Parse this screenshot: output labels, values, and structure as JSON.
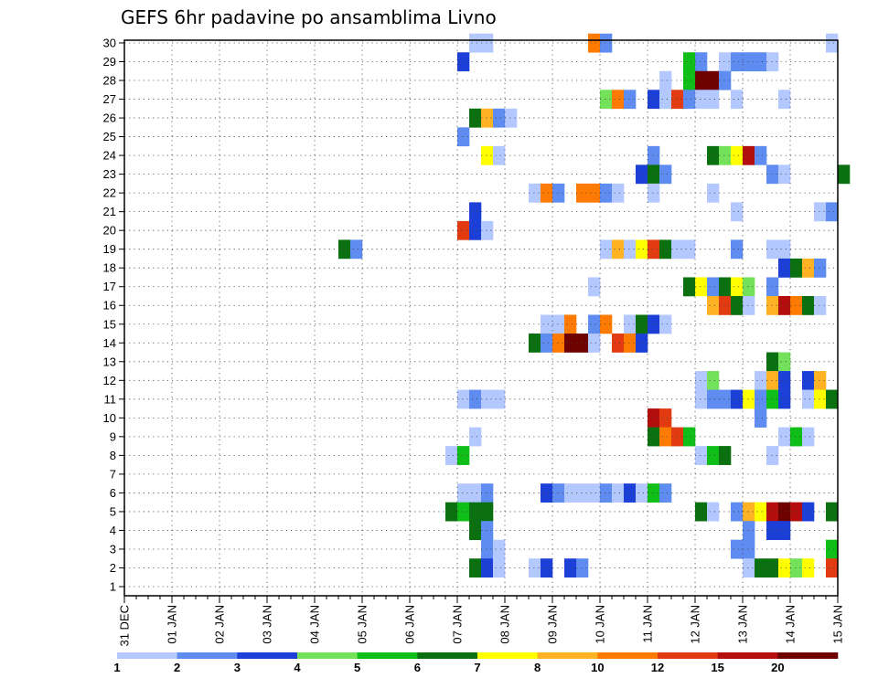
{
  "chart_data": {
    "type": "heatmap",
    "title": "GEFS 6hr padavine po ansamblima Livno",
    "xlabel": "",
    "ylabel": "",
    "ylim": [
      1,
      30
    ],
    "grid": true,
    "x_tick_labels": [
      "31 DEC",
      "01 JAN",
      "02 JAN",
      "03 JAN",
      "04 JAN",
      "05 JAN",
      "06 JAN",
      "07 JAN",
      "08 JAN",
      "09 JAN",
      "10 JAN",
      "11 JAN",
      "12 JAN",
      "13 JAN",
      "14 JAN",
      "15 JAN"
    ],
    "y_tick_labels": [
      "1",
      "2",
      "3",
      "4",
      "5",
      "6",
      "7",
      "8",
      "9",
      "10",
      "11",
      "12",
      "13",
      "14",
      "15",
      "16",
      "17",
      "18",
      "19",
      "20",
      "21",
      "22",
      "23",
      "24",
      "25",
      "26",
      "27",
      "28",
      "29",
      "30"
    ],
    "colorbar": {
      "labels": [
        "1",
        "2",
        "3",
        "4",
        "5",
        "6",
        "7",
        "8",
        "10",
        "12",
        "15",
        "20"
      ],
      "colors": [
        "#b3c8ff",
        "#5f8cf0",
        "#1c3fd8",
        "#73e25a",
        "#0fbf17",
        "#0b700f",
        "#ffff00",
        "#ffb224",
        "#ff7a00",
        "#e23b12",
        "#b30d0d",
        "#6f0000"
      ]
    },
    "cells_note": "each cell: [x in days after 31 DEC 00z, member 1-30, precipitation colour class index 0-11]",
    "cells": [
      [
        7.25,
        30,
        0
      ],
      [
        7.5,
        30,
        0
      ],
      [
        9.75,
        30,
        8
      ],
      [
        10.0,
        30,
        1
      ],
      [
        14.75,
        30,
        0
      ],
      [
        7.0,
        29,
        2
      ],
      [
        11.75,
        29,
        4
      ],
      [
        12.0,
        29,
        1
      ],
      [
        12.5,
        29,
        0
      ],
      [
        12.75,
        29,
        1
      ],
      [
        13.0,
        29,
        1
      ],
      [
        13.25,
        29,
        1
      ],
      [
        13.5,
        29,
        0
      ],
      [
        11.25,
        28,
        0
      ],
      [
        11.75,
        28,
        4
      ],
      [
        12.0,
        28,
        11
      ],
      [
        12.25,
        28,
        11
      ],
      [
        12.5,
        28,
        1
      ],
      [
        10.0,
        27,
        3
      ],
      [
        10.25,
        27,
        8
      ],
      [
        10.5,
        27,
        1
      ],
      [
        11.0,
        27,
        2
      ],
      [
        11.25,
        27,
        0
      ],
      [
        11.5,
        27,
        9
      ],
      [
        11.75,
        27,
        1
      ],
      [
        12.0,
        27,
        0
      ],
      [
        12.25,
        27,
        0
      ],
      [
        12.75,
        27,
        0
      ],
      [
        13.75,
        27,
        0
      ],
      [
        7.25,
        26,
        5
      ],
      [
        7.5,
        26,
        7
      ],
      [
        7.75,
        26,
        1
      ],
      [
        8.0,
        26,
        0
      ],
      [
        7.0,
        25,
        1
      ],
      [
        7.5,
        24,
        6
      ],
      [
        7.75,
        24,
        0
      ],
      [
        11.0,
        24,
        1
      ],
      [
        12.25,
        24,
        5
      ],
      [
        12.5,
        24,
        3
      ],
      [
        12.75,
        24,
        6
      ],
      [
        13.0,
        24,
        10
      ],
      [
        13.25,
        24,
        1
      ],
      [
        10.75,
        23,
        2
      ],
      [
        11.0,
        23,
        5
      ],
      [
        11.25,
        23,
        1
      ],
      [
        13.5,
        23,
        1
      ],
      [
        13.75,
        23,
        0
      ],
      [
        15.0,
        23,
        5
      ],
      [
        8.5,
        22,
        0
      ],
      [
        8.75,
        22,
        8
      ],
      [
        9.0,
        22,
        1
      ],
      [
        9.5,
        22,
        8
      ],
      [
        9.75,
        22,
        8
      ],
      [
        10.0,
        22,
        1
      ],
      [
        10.25,
        22,
        0
      ],
      [
        11.0,
        22,
        0
      ],
      [
        12.25,
        22,
        0
      ],
      [
        7.25,
        21,
        2
      ],
      [
        12.75,
        21,
        0
      ],
      [
        14.5,
        21,
        0
      ],
      [
        14.75,
        21,
        1
      ],
      [
        7.0,
        20,
        9
      ],
      [
        7.25,
        20,
        2
      ],
      [
        7.5,
        20,
        0
      ],
      [
        4.5,
        19,
        5
      ],
      [
        4.75,
        19,
        1
      ],
      [
        10.0,
        19,
        0
      ],
      [
        10.25,
        19,
        7
      ],
      [
        10.5,
        19,
        0
      ],
      [
        10.75,
        19,
        6
      ],
      [
        11.0,
        19,
        9
      ],
      [
        11.25,
        19,
        5
      ],
      [
        11.5,
        19,
        0
      ],
      [
        11.75,
        19,
        0
      ],
      [
        12.75,
        19,
        1
      ],
      [
        13.5,
        19,
        0
      ],
      [
        13.75,
        19,
        0
      ],
      [
        13.75,
        18,
        2
      ],
      [
        14.0,
        18,
        5
      ],
      [
        14.25,
        18,
        7
      ],
      [
        14.5,
        18,
        1
      ],
      [
        9.75,
        17,
        0
      ],
      [
        11.75,
        17,
        5
      ],
      [
        12.0,
        17,
        6
      ],
      [
        12.25,
        17,
        1
      ],
      [
        12.5,
        17,
        5
      ],
      [
        12.75,
        17,
        6
      ],
      [
        13.0,
        17,
        3
      ],
      [
        13.5,
        17,
        1
      ],
      [
        12.25,
        16,
        7
      ],
      [
        12.5,
        16,
        9
      ],
      [
        12.75,
        16,
        5
      ],
      [
        13.0,
        16,
        0
      ],
      [
        13.5,
        16,
        7
      ],
      [
        13.75,
        16,
        10
      ],
      [
        14.0,
        16,
        8
      ],
      [
        14.25,
        16,
        5
      ],
      [
        14.5,
        16,
        0
      ],
      [
        8.75,
        15,
        0
      ],
      [
        9.0,
        15,
        0
      ],
      [
        9.25,
        15,
        8
      ],
      [
        9.75,
        15,
        1
      ],
      [
        10.0,
        15,
        8
      ],
      [
        10.5,
        15,
        0
      ],
      [
        10.75,
        15,
        5
      ],
      [
        11.0,
        15,
        2
      ],
      [
        11.25,
        15,
        0
      ],
      [
        8.5,
        14,
        5
      ],
      [
        8.75,
        14,
        1
      ],
      [
        9.0,
        14,
        8
      ],
      [
        9.25,
        14,
        11
      ],
      [
        9.5,
        14,
        11
      ],
      [
        9.75,
        14,
        0
      ],
      [
        10.25,
        14,
        9
      ],
      [
        10.5,
        14,
        8
      ],
      [
        10.75,
        14,
        2
      ],
      [
        13.5,
        13,
        5
      ],
      [
        13.75,
        13,
        3
      ],
      [
        12.0,
        12,
        0
      ],
      [
        12.25,
        12,
        3
      ],
      [
        13.25,
        12,
        0
      ],
      [
        13.5,
        12,
        7
      ],
      [
        13.75,
        12,
        2
      ],
      [
        14.25,
        12,
        2
      ],
      [
        14.5,
        12,
        7
      ],
      [
        7.0,
        11,
        0
      ],
      [
        7.25,
        11,
        1
      ],
      [
        7.5,
        11,
        0
      ],
      [
        7.75,
        11,
        0
      ],
      [
        12.0,
        11,
        0
      ],
      [
        12.25,
        11,
        1
      ],
      [
        12.5,
        11,
        1
      ],
      [
        12.75,
        11,
        2
      ],
      [
        13.0,
        11,
        6
      ],
      [
        13.25,
        11,
        1
      ],
      [
        13.5,
        11,
        4
      ],
      [
        13.75,
        11,
        2
      ],
      [
        14.25,
        11,
        0
      ],
      [
        14.5,
        11,
        6
      ],
      [
        14.75,
        11,
        5
      ],
      [
        11.0,
        10,
        10
      ],
      [
        11.25,
        10,
        9
      ],
      [
        13.25,
        10,
        1
      ],
      [
        11.0,
        9,
        5
      ],
      [
        11.25,
        9,
        8
      ],
      [
        11.5,
        9,
        9
      ],
      [
        11.75,
        9,
        4
      ],
      [
        7.25,
        9,
        0
      ],
      [
        13.75,
        9,
        0
      ],
      [
        14.0,
        9,
        4
      ],
      [
        14.25,
        9,
        0
      ],
      [
        6.75,
        8,
        0
      ],
      [
        7.0,
        8,
        4
      ],
      [
        12.0,
        8,
        0
      ],
      [
        12.25,
        8,
        4
      ],
      [
        12.5,
        8,
        5
      ],
      [
        13.5,
        8,
        0
      ],
      [
        7.0,
        6,
        0
      ],
      [
        7.25,
        6,
        0
      ],
      [
        7.5,
        6,
        1
      ],
      [
        8.75,
        6,
        2
      ],
      [
        9.0,
        6,
        1
      ],
      [
        9.25,
        6,
        0
      ],
      [
        9.5,
        6,
        0
      ],
      [
        9.75,
        6,
        0
      ],
      [
        10.0,
        6,
        1
      ],
      [
        10.25,
        6,
        0
      ],
      [
        10.5,
        6,
        2
      ],
      [
        10.75,
        6,
        0
      ],
      [
        11.0,
        6,
        4
      ],
      [
        11.25,
        6,
        1
      ],
      [
        6.75,
        5,
        5
      ],
      [
        7.0,
        5,
        4
      ],
      [
        7.25,
        5,
        5
      ],
      [
        7.5,
        5,
        5
      ],
      [
        12.0,
        5,
        5
      ],
      [
        12.25,
        5,
        0
      ],
      [
        12.75,
        5,
        1
      ],
      [
        13.0,
        5,
        7
      ],
      [
        13.25,
        5,
        6
      ],
      [
        13.5,
        5,
        10
      ],
      [
        13.75,
        5,
        11
      ],
      [
        14.0,
        5,
        10
      ],
      [
        14.25,
        5,
        2
      ],
      [
        14.75,
        5,
        5
      ],
      [
        7.25,
        4,
        5
      ],
      [
        7.5,
        4,
        1
      ],
      [
        13.0,
        4,
        1
      ],
      [
        13.5,
        4,
        2
      ],
      [
        13.75,
        4,
        2
      ],
      [
        7.5,
        3,
        1
      ],
      [
        7.75,
        3,
        0
      ],
      [
        12.75,
        3,
        1
      ],
      [
        13.0,
        3,
        1
      ],
      [
        14.75,
        3,
        4
      ],
      [
        7.25,
        2,
        5
      ],
      [
        7.5,
        2,
        2
      ],
      [
        7.75,
        2,
        0
      ],
      [
        8.5,
        2,
        0
      ],
      [
        8.75,
        2,
        2
      ],
      [
        9.25,
        2,
        2
      ],
      [
        9.5,
        2,
        1
      ],
      [
        13.0,
        2,
        0
      ],
      [
        13.25,
        2,
        5
      ],
      [
        13.5,
        2,
        5
      ],
      [
        13.75,
        2,
        6
      ],
      [
        14.0,
        2,
        3
      ],
      [
        14.25,
        2,
        6
      ],
      [
        14.75,
        2,
        9
      ]
    ]
  }
}
